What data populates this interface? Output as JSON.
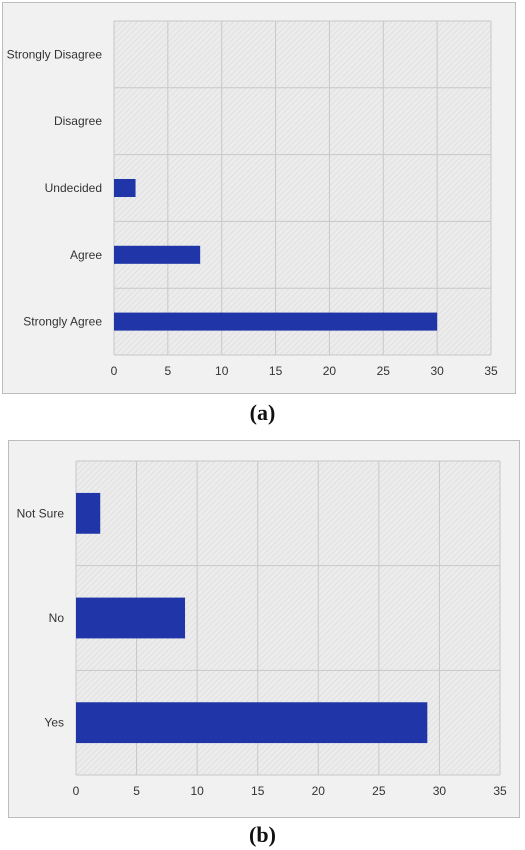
{
  "chart_data": [
    {
      "type": "bar",
      "orientation": "horizontal",
      "categories": [
        "Strongly Disagree",
        "Disagree",
        "Undecided",
        "Agree",
        "Strongly Agree"
      ],
      "values": [
        0,
        0,
        2,
        8,
        30
      ],
      "xlim": [
        0,
        35
      ],
      "xticks": [
        "0",
        "5",
        "10",
        "15",
        "20",
        "25",
        "30",
        "35"
      ],
      "bar_color": "#1f35a8",
      "grid": true
    },
    {
      "type": "bar",
      "orientation": "horizontal",
      "categories": [
        "Not Sure",
        "No",
        "Yes"
      ],
      "values": [
        2,
        9,
        29
      ],
      "xlim": [
        0,
        35
      ],
      "xticks": [
        "0",
        "5",
        "10",
        "15",
        "20",
        "25",
        "30",
        "35"
      ],
      "bar_color": "#1f35a8",
      "grid": true
    }
  ],
  "captions": {
    "a": "(a)",
    "b": "(b)"
  }
}
